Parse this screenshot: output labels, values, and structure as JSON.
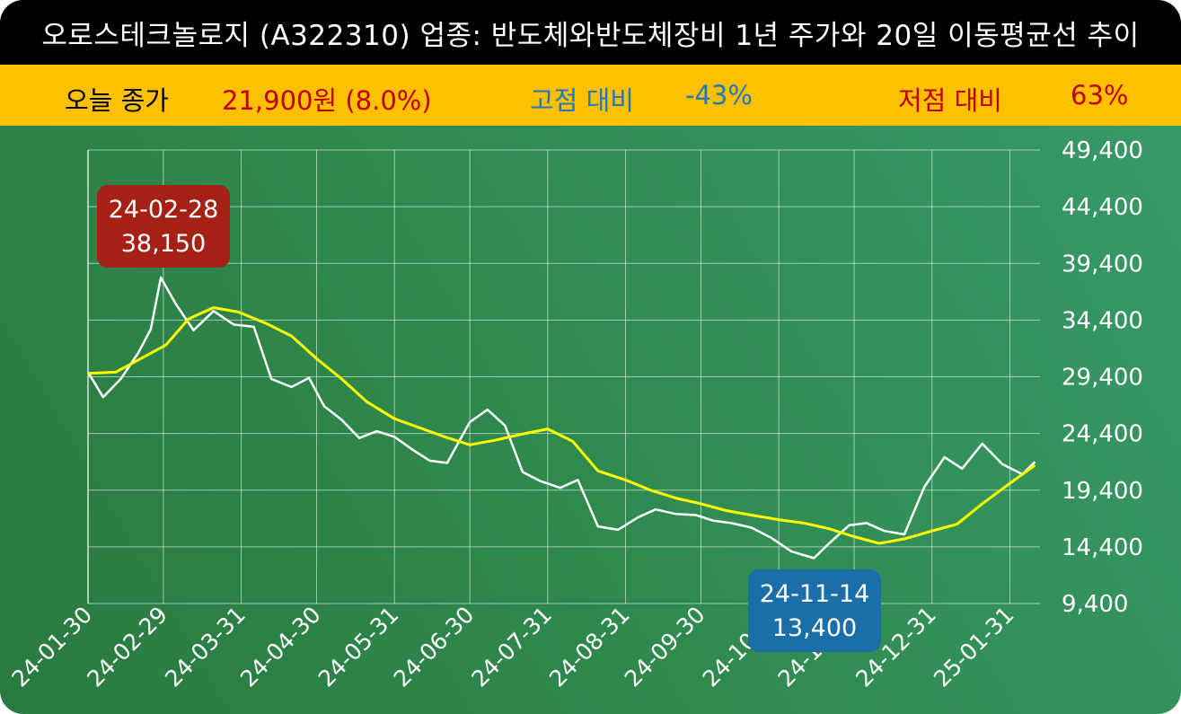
{
  "header": {
    "title": "오로스테크놀로지 (A322310) 업종: 반도체와반도체장비  1년 주가와 20일 이동평균선 추이"
  },
  "stats": {
    "close_label": "오늘 종가",
    "close_value": "21,900원 (8.0%)",
    "high_label": "고점 대비",
    "high_value": "-43%",
    "low_label": "저점 대비",
    "low_value": "63%"
  },
  "colors": {
    "title_bg": "#000000",
    "stats_bg": "#ffc000",
    "close_color": "#c00000",
    "high_color": "#1f77c0",
    "low_color": "#c00000",
    "price_line": "#ffffff",
    "ma_line": "#ffff00",
    "high_callout_bg": "#a52015",
    "low_callout_bg": "#1a6fa8"
  },
  "chart_data": {
    "type": "line",
    "xlabel": "",
    "ylabel": "",
    "ylim": [
      9400,
      49400
    ],
    "grid": true,
    "x_tick_labels": [
      "24-01-30",
      "24-02-29",
      "24-03-31",
      "24-04-30",
      "24-05-31",
      "24-06-30",
      "24-07-31",
      "24-08-31",
      "24-09-30",
      "24-10-31",
      "24-11-30",
      "24-12-31",
      "25-01-31"
    ],
    "y_tick_labels": [
      "49,400",
      "44,400",
      "39,400",
      "34,400",
      "29,400",
      "24,400",
      "19,400",
      "14,400",
      "9,400"
    ],
    "series": [
      {
        "color": "#ffffff",
        "x": [
          "2024-01-30",
          "2024-02-05",
          "2024-02-12",
          "2024-02-19",
          "2024-02-24",
          "2024-02-28",
          "2024-03-05",
          "2024-03-12",
          "2024-03-20",
          "2024-03-28",
          "2024-04-05",
          "2024-04-12",
          "2024-04-20",
          "2024-04-27",
          "2024-05-03",
          "2024-05-10",
          "2024-05-17",
          "2024-05-24",
          "2024-05-31",
          "2024-06-07",
          "2024-06-14",
          "2024-06-21",
          "2024-06-30",
          "2024-07-07",
          "2024-07-14",
          "2024-07-21",
          "2024-07-28",
          "2024-08-05",
          "2024-08-12",
          "2024-08-20",
          "2024-08-28",
          "2024-09-05",
          "2024-09-12",
          "2024-09-20",
          "2024-09-28",
          "2024-10-05",
          "2024-10-12",
          "2024-10-20",
          "2024-10-28",
          "2024-11-05",
          "2024-11-14",
          "2024-11-20",
          "2024-11-28",
          "2024-12-05",
          "2024-12-12",
          "2024-12-20",
          "2024-12-28",
          "2025-01-05",
          "2025-01-12",
          "2025-01-20",
          "2025-01-28",
          "2025-02-05",
          "2025-02-10"
        ],
        "values": [
          29800,
          27600,
          29200,
          31500,
          33600,
          38150,
          35800,
          33500,
          35200,
          34000,
          33800,
          29200,
          28500,
          29300,
          26800,
          25600,
          24000,
          24600,
          24100,
          23000,
          22000,
          21800,
          25400,
          26500,
          25100,
          21000,
          20200,
          19600,
          20300,
          16200,
          15900,
          17000,
          17700,
          17300,
          17200,
          16700,
          16500,
          16100,
          15200,
          14000,
          13400,
          14700,
          16300,
          16500,
          15800,
          15500,
          19700,
          22300,
          21300,
          23500,
          21700,
          20800,
          21900
        ]
      },
      {
        "color": "#ffff00",
        "x": [
          "2024-01-30",
          "2024-02-10",
          "2024-02-20",
          "2024-03-01",
          "2024-03-10",
          "2024-03-20",
          "2024-03-30",
          "2024-04-10",
          "2024-04-20",
          "2024-04-30",
          "2024-05-10",
          "2024-05-20",
          "2024-05-31",
          "2024-06-10",
          "2024-06-20",
          "2024-06-30",
          "2024-07-10",
          "2024-07-20",
          "2024-07-31",
          "2024-08-10",
          "2024-08-20",
          "2024-08-31",
          "2024-09-10",
          "2024-09-20",
          "2024-09-30",
          "2024-10-10",
          "2024-10-20",
          "2024-10-31",
          "2024-11-10",
          "2024-11-20",
          "2024-11-30",
          "2024-12-10",
          "2024-12-20",
          "2024-12-31",
          "2025-01-10",
          "2025-01-20",
          "2025-01-31",
          "2025-02-10"
        ],
        "values": [
          29700,
          29800,
          31000,
          32200,
          34500,
          35500,
          35100,
          34100,
          33000,
          31000,
          29200,
          27200,
          25700,
          24900,
          24100,
          23400,
          23800,
          24300,
          24800,
          23700,
          21100,
          20300,
          19400,
          18700,
          18200,
          17600,
          17200,
          16800,
          16500,
          16000,
          15300,
          14700,
          15100,
          15800,
          16400,
          18200,
          20000,
          21600
        ]
      }
    ]
  },
  "callouts": {
    "high": {
      "date": "24-02-28",
      "value": "38,150"
    },
    "low": {
      "date": "24-11-14",
      "value": "13,400"
    }
  }
}
